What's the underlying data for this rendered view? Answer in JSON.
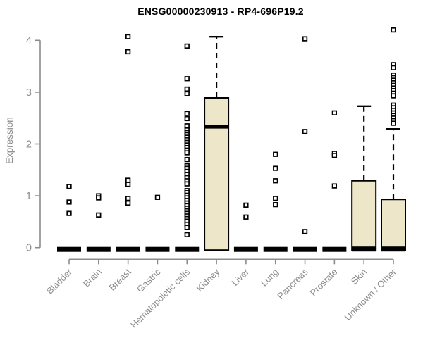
{
  "chart_data": {
    "type": "boxplot",
    "title": "ENSG00000230913 - RP4-696P19.2",
    "ylabel": "Expression",
    "xlabel": "",
    "ylim": [
      0,
      4
    ],
    "yticks": [
      0,
      1,
      2,
      3,
      4
    ],
    "grid": false,
    "legend": false,
    "categories": [
      "Bladder",
      "Brain",
      "Breast",
      "Gastric",
      "Hematopoietic cells",
      "Kidney",
      "Liver",
      "Lung",
      "Pancreas",
      "Prostate",
      "Skin",
      "Unknown / Other"
    ],
    "boxes": [
      {
        "category": "Bladder",
        "q1": 0,
        "median": 0,
        "q3": 0,
        "whisker_low": 0,
        "whisker_high": 0,
        "outliers": [
          1.18,
          0.88,
          0.66
        ]
      },
      {
        "category": "Brain",
        "q1": 0,
        "median": 0,
        "q3": 0,
        "whisker_low": 0,
        "whisker_high": 0,
        "outliers": [
          1.0,
          0.96,
          0.63
        ]
      },
      {
        "category": "Breast",
        "q1": 0,
        "median": 0,
        "q3": 0,
        "whisker_low": 0,
        "whisker_high": 0,
        "outliers": [
          4.07,
          3.78,
          1.3,
          1.22,
          0.95,
          0.86
        ]
      },
      {
        "category": "Gastric",
        "q1": 0,
        "median": 0,
        "q3": 0,
        "whisker_low": 0,
        "whisker_high": 0,
        "outliers": [
          0.97
        ]
      },
      {
        "category": "Hematopoietic cells",
        "q1": 0,
        "median": 0,
        "q3": 0,
        "whisker_low": 0,
        "whisker_high": 0,
        "outliers": [
          3.89,
          3.26,
          3.06,
          2.97,
          2.59,
          2.49,
          2.35,
          2.27,
          2.22,
          2.18,
          2.13,
          2.08,
          2.03,
          1.98,
          1.93,
          1.88,
          1.83,
          1.7,
          1.58,
          1.53,
          1.47,
          1.41,
          1.35,
          1.29,
          1.23,
          1.1,
          1.06,
          1.01,
          0.96,
          0.91,
          0.86,
          0.81,
          0.76,
          0.71,
          0.66,
          0.61,
          0.56,
          0.51,
          0.45,
          0.39,
          0.25
        ]
      },
      {
        "category": "Kidney",
        "q1": 0,
        "median": 2.33,
        "q3": 2.89,
        "whisker_low": 0,
        "whisker_high": 4.07,
        "outliers": []
      },
      {
        "category": "Liver",
        "q1": 0,
        "median": 0,
        "q3": 0,
        "whisker_low": 0,
        "whisker_high": 0,
        "outliers": [
          0.82,
          0.59
        ]
      },
      {
        "category": "Lung",
        "q1": 0,
        "median": 0,
        "q3": 0,
        "whisker_low": 0,
        "whisker_high": 0,
        "outliers": [
          1.8,
          1.53,
          1.29,
          0.95,
          0.83
        ]
      },
      {
        "category": "Pancreas",
        "q1": 0,
        "median": 0,
        "q3": 0,
        "whisker_low": 0,
        "whisker_high": 0,
        "outliers": [
          4.03,
          2.24,
          0.31
        ]
      },
      {
        "category": "Prostate",
        "q1": 0,
        "median": 0,
        "q3": 0,
        "whisker_low": 0,
        "whisker_high": 0,
        "outliers": [
          2.6,
          1.82,
          1.78,
          1.19
        ]
      },
      {
        "category": "Skin",
        "q1": 0,
        "median": 0,
        "q3": 1.29,
        "whisker_low": 0,
        "whisker_high": 2.73,
        "outliers": []
      },
      {
        "category": "Unknown / Other",
        "q1": 0,
        "median": 0,
        "q3": 0.93,
        "whisker_low": 0,
        "whisker_high": 2.29,
        "outliers": [
          4.2,
          3.53,
          3.47,
          3.33,
          3.28,
          3.23,
          3.18,
          3.13,
          3.08,
          3.03,
          2.98,
          2.93,
          2.75,
          2.7,
          2.65,
          2.6,
          2.55,
          2.5,
          2.45,
          2.4
        ]
      }
    ],
    "colors": {
      "box_fill": "#EDE6C8",
      "box_border": "#000000",
      "median": "#000000",
      "whisker": "#000000",
      "outlier": "#000000",
      "axis": "#8c8c8c",
      "tick_text": "#8c8c8c",
      "title": "#000000",
      "background": "#ffffff"
    }
  }
}
